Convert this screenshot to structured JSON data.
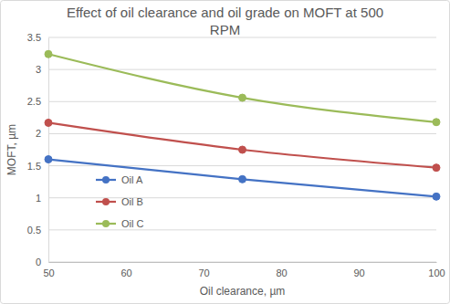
{
  "chart_data": {
    "type": "line",
    "title": "Effect of oil clearance and oil grade on MOFT at 500 RPM",
    "x_label": "Oil clearance, µm",
    "y_label": "MOFT, µm",
    "x": [
      50,
      75,
      100
    ],
    "series": [
      {
        "name": "Oil A",
        "color": "#4472c4",
        "values": [
          1.6,
          1.29,
          1.02
        ]
      },
      {
        "name": "Oil B",
        "color": "#c0504d",
        "values": [
          2.17,
          1.75,
          1.47
        ]
      },
      {
        "name": "Oil C",
        "color": "#9bbb59",
        "values": [
          3.24,
          2.56,
          2.18
        ]
      }
    ],
    "xlim": [
      50,
      100
    ],
    "xticks": [
      50,
      60,
      70,
      80,
      90,
      100
    ],
    "ylim": [
      0,
      3.5
    ],
    "yticks": [
      0,
      0.5,
      1,
      1.5,
      2,
      2.5,
      3,
      3.5
    ],
    "grid": true,
    "legend": "lower left",
    "marker": "circle",
    "line_style": "smooth"
  }
}
